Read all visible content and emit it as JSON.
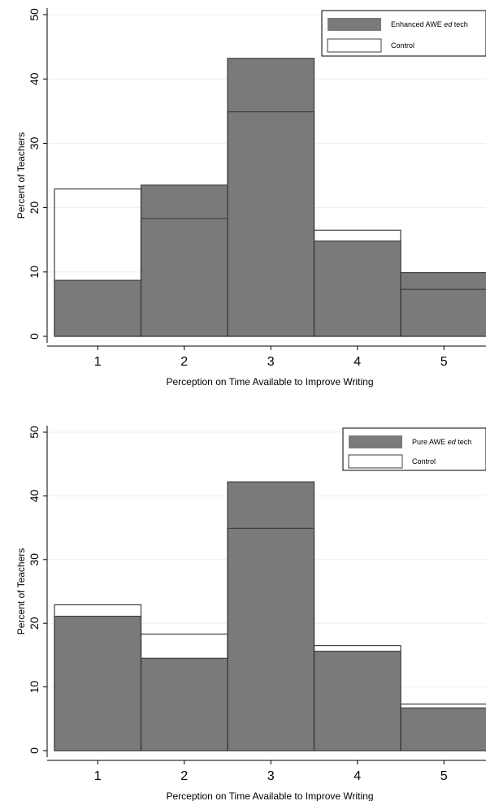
{
  "colors": {
    "treatment_fill": "#7a7a7a",
    "bar_stroke": "#3f3f3f",
    "control_fill": "#ffffff",
    "axis": "#000000",
    "grid": "#eeeeee"
  },
  "chart_data": [
    {
      "type": "bar",
      "categories": [
        "1",
        "2",
        "3",
        "4",
        "5"
      ],
      "xlabel": "Perception on Time Available to Improve Writing",
      "ylabel": "Percent of Teachers",
      "ylim": [
        0,
        50
      ],
      "yticks": [
        "0",
        "10",
        "20",
        "30",
        "40",
        "50"
      ],
      "grid": true,
      "legend_position": "top-right",
      "series": [
        {
          "name": "Enhanced AWE ed tech",
          "name_parts": [
            "Enhanced AWE ",
            "ed",
            " tech"
          ],
          "style": "filled",
          "values": [
            8.7,
            23.5,
            43.2,
            14.8,
            9.9
          ]
        },
        {
          "name": "Control",
          "name_parts": [
            "Control",
            "",
            ""
          ],
          "style": "outline",
          "values": [
            22.9,
            18.3,
            34.9,
            16.5,
            7.3
          ]
        }
      ]
    },
    {
      "type": "bar",
      "categories": [
        "1",
        "2",
        "3",
        "4",
        "5"
      ],
      "xlabel": "Perception on Time Available to Improve Writing",
      "ylabel": "Percent of Teachers",
      "ylim": [
        0,
        50
      ],
      "yticks": [
        "0",
        "10",
        "20",
        "30",
        "40",
        "50"
      ],
      "grid": true,
      "legend_position": "top-right",
      "series": [
        {
          "name": "Pure AWE ed tech",
          "name_parts": [
            "Pure AWE ",
            "ed",
            " tech"
          ],
          "style": "filled",
          "values": [
            21.1,
            14.5,
            42.2,
            15.6,
            6.7
          ]
        },
        {
          "name": "Control",
          "name_parts": [
            "Control",
            "",
            ""
          ],
          "style": "outline",
          "values": [
            22.9,
            18.3,
            34.9,
            16.5,
            7.3
          ]
        }
      ]
    }
  ]
}
